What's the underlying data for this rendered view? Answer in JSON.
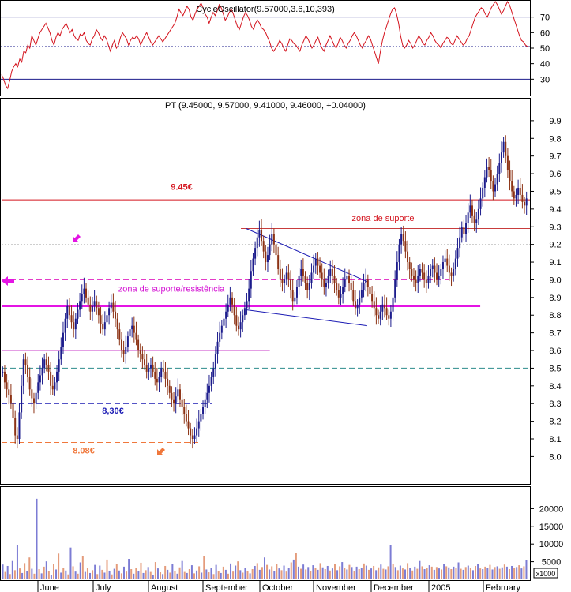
{
  "chart_data": [
    {
      "type": "line",
      "panel": "oscillator",
      "title": "CycleOscillator(9.57000,3.6,10,393)",
      "ylim": [
        20,
        80
      ],
      "y_ticks": [
        30,
        40,
        50,
        60,
        70
      ],
      "reference_lines": [
        {
          "value": 70,
          "style": "solid",
          "color": "#1c1c8c"
        },
        {
          "value": 51,
          "style": "dotted",
          "color": "#1c1c8c"
        },
        {
          "value": 30,
          "style": "solid",
          "color": "#1c1c8c"
        }
      ],
      "line_color": "#d4141e",
      "series": [
        {
          "values": [
            33,
            30,
            26,
            24,
            29,
            35,
            38,
            40,
            38,
            43,
            41,
            48,
            47,
            52,
            50,
            58,
            55,
            52,
            56,
            60,
            62,
            64,
            66,
            63,
            60,
            55,
            52,
            57,
            60,
            58,
            62,
            64,
            66,
            63,
            60,
            62,
            58,
            56,
            55,
            59,
            58,
            60,
            55,
            53,
            52,
            56,
            58,
            62,
            60,
            57,
            55,
            58,
            56,
            52,
            48,
            52,
            55,
            50,
            52,
            57,
            60,
            58,
            56,
            52,
            55,
            57,
            56,
            58,
            56,
            52,
            55,
            58,
            60,
            57,
            54,
            52,
            54,
            56,
            58,
            56,
            54,
            56,
            58,
            60,
            62,
            64,
            66,
            70,
            75,
            73,
            71,
            74,
            77,
            75,
            70,
            68,
            72,
            75,
            77,
            79,
            76,
            72,
            70,
            66,
            70,
            73,
            71,
            74,
            78,
            76,
            72,
            68,
            70,
            73,
            75,
            72,
            68,
            64,
            62,
            66,
            70,
            73,
            71,
            68,
            64,
            62,
            66,
            68,
            66,
            63,
            62,
            60,
            57,
            54,
            50,
            48,
            50,
            52,
            55,
            53,
            50,
            48,
            52,
            56,
            55,
            53,
            52,
            50,
            48,
            52,
            55,
            58,
            56,
            53,
            50,
            52,
            55,
            57,
            53,
            50,
            48,
            52,
            55,
            58,
            55,
            52,
            50,
            53,
            57,
            55,
            52,
            50,
            53,
            55,
            58,
            60,
            58,
            55,
            52,
            50,
            53,
            55,
            58,
            56,
            52,
            48,
            44,
            40,
            48,
            55,
            60,
            64,
            68,
            72,
            75,
            76,
            72,
            66,
            58,
            52,
            50,
            52,
            55,
            53,
            50,
            52,
            55,
            58,
            56,
            53,
            52,
            55,
            57,
            60,
            58,
            55,
            53,
            52,
            50,
            53,
            55,
            57,
            56,
            53,
            52,
            55,
            58,
            56,
            54,
            52,
            53,
            56,
            58,
            62,
            66,
            70,
            72,
            74,
            76,
            75,
            72,
            70,
            73,
            76,
            78,
            80,
            78,
            75,
            72,
            74,
            77,
            80,
            78,
            74,
            70,
            66,
            62,
            58,
            55,
            54,
            52,
            51
          ]
        }
      ]
    },
    {
      "type": "candlestick",
      "panel": "price",
      "title": "PT (9.45000, 9.57000, 9.41000, 9.46000, +0.04000)",
      "ylim": [
        7.85,
        10.02
      ],
      "y_ticks": [
        8.0,
        8.1,
        8.2,
        8.3,
        8.4,
        8.5,
        8.6,
        8.7,
        8.8,
        8.9,
        9.0,
        9.1,
        9.2,
        9.3,
        9.4,
        9.5,
        9.6,
        9.7,
        9.8,
        9.9
      ],
      "x_labels": [
        "June",
        "July",
        "August",
        "September",
        "October",
        "November",
        "December",
        "2005",
        "February"
      ],
      "bar_up_color": "#1c1c8c",
      "bar_down_color": "#8c3214",
      "bars_close": [
        8.48,
        8.42,
        8.38,
        8.35,
        8.3,
        8.22,
        8.12,
        8.1,
        8.25,
        8.4,
        8.55,
        8.52,
        8.45,
        8.38,
        8.33,
        8.3,
        8.36,
        8.42,
        8.46,
        8.5,
        8.55,
        8.52,
        8.48,
        8.4,
        8.38,
        8.42,
        8.48,
        8.55,
        8.62,
        8.7,
        8.78,
        8.85,
        8.8,
        8.76,
        8.72,
        8.78,
        8.83,
        8.88,
        8.92,
        8.95,
        8.9,
        8.86,
        8.82,
        8.85,
        8.88,
        8.84,
        8.8,
        8.75,
        8.72,
        8.76,
        8.8,
        8.84,
        8.87,
        8.82,
        8.78,
        8.72,
        8.66,
        8.6,
        8.58,
        8.62,
        8.68,
        8.72,
        8.74,
        8.7,
        8.66,
        8.6,
        8.58,
        8.55,
        8.52,
        8.48,
        8.5,
        8.52,
        8.48,
        8.44,
        8.42,
        8.45,
        8.5,
        8.48,
        8.44,
        8.4,
        8.36,
        8.32,
        8.3,
        8.34,
        8.38,
        8.32,
        8.28,
        8.24,
        8.2,
        8.16,
        8.12,
        8.1,
        8.12,
        8.16,
        8.2,
        8.24,
        8.28,
        8.32,
        8.36,
        8.4,
        8.45,
        8.5,
        8.58,
        8.65,
        8.7,
        8.74,
        8.78,
        8.82,
        8.86,
        8.9,
        8.86,
        8.8,
        8.74,
        8.72,
        8.76,
        8.8,
        8.84,
        8.88,
        8.95,
        9.05,
        9.12,
        9.18,
        9.24,
        9.28,
        9.22,
        9.16,
        9.1,
        9.14,
        9.2,
        9.26,
        9.2,
        9.14,
        9.06,
        9.0,
        8.98,
        9.0,
        9.04,
        9.0,
        8.94,
        8.88,
        8.9,
        8.96,
        9.02,
        9.06,
        9.02,
        8.98,
        8.94,
        8.98,
        9.04,
        9.08,
        9.12,
        9.08,
        9.04,
        9.0,
        8.96,
        8.98,
        9.02,
        9.06,
        9.02,
        8.98,
        8.94,
        8.9,
        8.92,
        8.96,
        9.0,
        9.02,
        8.98,
        8.94,
        8.88,
        8.84,
        8.86,
        8.9,
        8.94,
        8.98,
        9.0,
        8.96,
        8.92,
        8.88,
        8.84,
        8.8,
        8.78,
        8.82,
        8.86,
        8.84,
        8.8,
        8.78,
        8.82,
        8.9,
        9.0,
        9.1,
        9.2,
        9.26,
        9.22,
        9.16,
        9.1,
        9.06,
        9.02,
        9.0,
        8.98,
        9.02,
        9.06,
        9.04,
        9.0,
        8.98,
        9.02,
        9.06,
        9.08,
        9.04,
        9.0,
        9.02,
        9.06,
        9.1,
        9.12,
        9.08,
        9.04,
        9.02,
        9.06,
        9.12,
        9.18,
        9.24,
        9.3,
        9.26,
        9.32,
        9.38,
        9.42,
        9.36,
        9.32,
        9.34,
        9.4,
        9.46,
        9.52,
        9.58,
        9.64,
        9.62,
        9.56,
        9.5,
        9.54,
        9.6,
        9.66,
        9.72,
        9.78,
        9.7,
        9.62,
        9.56,
        9.5,
        9.46,
        9.48,
        9.52,
        9.48,
        9.44,
        9.42,
        9.46
      ],
      "horizontal_lines": [
        {
          "value": 9.45,
          "color": "#d4141e",
          "style": "solid",
          "x_from": 0.0,
          "label": "9.45€"
        },
        {
          "value": 9.29,
          "color": "#c83c3c",
          "style": "solid",
          "x_from": 0.455
        },
        {
          "value": 9.2,
          "color": "#c8c8c8",
          "style": "dotted",
          "x_from": 0.0
        },
        {
          "value": 9.0,
          "color": "#e43cc8",
          "style": "dashed",
          "x_from": 0.0,
          "x_to": 0.85
        },
        {
          "value": 8.85,
          "color": "#e414e4",
          "style": "solid",
          "x_from": 0.0,
          "x_to": 0.91
        },
        {
          "value": 8.6,
          "color": "#c83cc8",
          "style": "solid",
          "x_from": 0.0,
          "x_to": 0.51
        },
        {
          "value": 8.5,
          "color": "#2c8c8c",
          "style": "dashed",
          "x_from": 0.0
        },
        {
          "value": 8.3,
          "color": "#1c1cb4",
          "style": "dashed",
          "x_from": 0.0,
          "x_to": 0.4,
          "label": "8,30€"
        },
        {
          "value": 8.08,
          "color": "#f0783c",
          "style": "dashed",
          "x_from": 0.0,
          "x_to": 0.375,
          "label": "8.08€"
        }
      ],
      "annotations": [
        {
          "text": "zona de suporte/resistência",
          "color": "#d414d4"
        },
        {
          "text": "zona de suporte",
          "color": "#d4141e"
        }
      ],
      "trendlines": [
        {
          "points": [
            [
              0.465,
              9.29
            ],
            [
              0.695,
              8.99
            ]
          ],
          "color": "#1c1cb4"
        },
        {
          "points": [
            [
              0.465,
              8.83
            ],
            [
              0.695,
              8.74
            ]
          ],
          "color": "#1c1cb4"
        }
      ]
    },
    {
      "type": "bar",
      "panel": "volume",
      "ylim": [
        0,
        25000
      ],
      "y_ticks": [
        5000,
        10000,
        15000,
        20000
      ],
      "unit_label": "x1000",
      "colors": [
        "#7c7cd4",
        "#e49c7c"
      ],
      "values": [
        4200,
        2100,
        3800,
        1500,
        5200,
        2600,
        9800,
        3100,
        1800,
        4600,
        2400,
        6200,
        3000,
        1600,
        22800,
        2900,
        1700,
        3600,
        5100,
        2300,
        1200,
        4400,
        2800,
        7300,
        1900,
        3300,
        2500,
        1400,
        9000,
        3700,
        2200,
        1600,
        4800,
        6600,
        2100,
        3300,
        1800,
        2600,
        4100,
        1500,
        3900,
        2700,
        1900,
        5600,
        2300,
        1400,
        3000,
        4300,
        2500,
        1700,
        3600,
        2200,
        5800,
        2900,
        1600,
        3200,
        2400,
        4700,
        1800,
        2600,
        3500,
        2100,
        1300,
        4900,
        3100,
        2000,
        1500,
        3800,
        2700,
        1900,
        4400,
        2300,
        1600,
        3400,
        5200,
        2100,
        1800,
        2900,
        4000,
        1700,
        2500,
        3700,
        1900,
        6500,
        2800,
        2000,
        3300,
        1500,
        4100,
        2400,
        1800,
        3600,
        2700,
        1600,
        4500,
        2200,
        3900,
        5100,
        2600,
        1900,
        3200,
        2400,
        1700,
        2900,
        3800,
        4600,
        2700,
        3500,
        6200,
        4100,
        2800,
        3700,
        2300,
        4400,
        3100,
        2600,
        3900,
        2200,
        3300,
        4800,
        5600,
        7400,
        3600,
        3000,
        4200,
        2800,
        3500,
        2400,
        4000,
        3200,
        2700,
        4600,
        3400,
        2900,
        3800,
        2500,
        3100,
        4300,
        2600,
        3700,
        4900,
        3200,
        2800,
        4100,
        3500,
        2400,
        3600,
        2900,
        3300,
        4500,
        3900,
        2700,
        3100,
        3800,
        2600,
        3400,
        4200,
        3000,
        2800,
        3700,
        9800,
        4400,
        3500,
        2600,
        3900,
        3100,
        2800,
        4600,
        3300,
        2500,
        3600,
        3000,
        5200,
        3700,
        2900,
        3300,
        4000,
        3600,
        2700,
        3500,
        3100,
        2800,
        4300,
        3700,
        3400,
        2900,
        3600,
        3200,
        4800,
        3000,
        2700,
        3500,
        3900,
        3300,
        2600,
        3800,
        4400,
        3100,
        2900,
        3600,
        3300,
        4100,
        2800,
        3500,
        3700,
        3000,
        3400,
        4200,
        3600,
        2900,
        3800,
        3300,
        3500,
        4000,
        3100,
        3700,
        5400
      ]
    }
  ]
}
